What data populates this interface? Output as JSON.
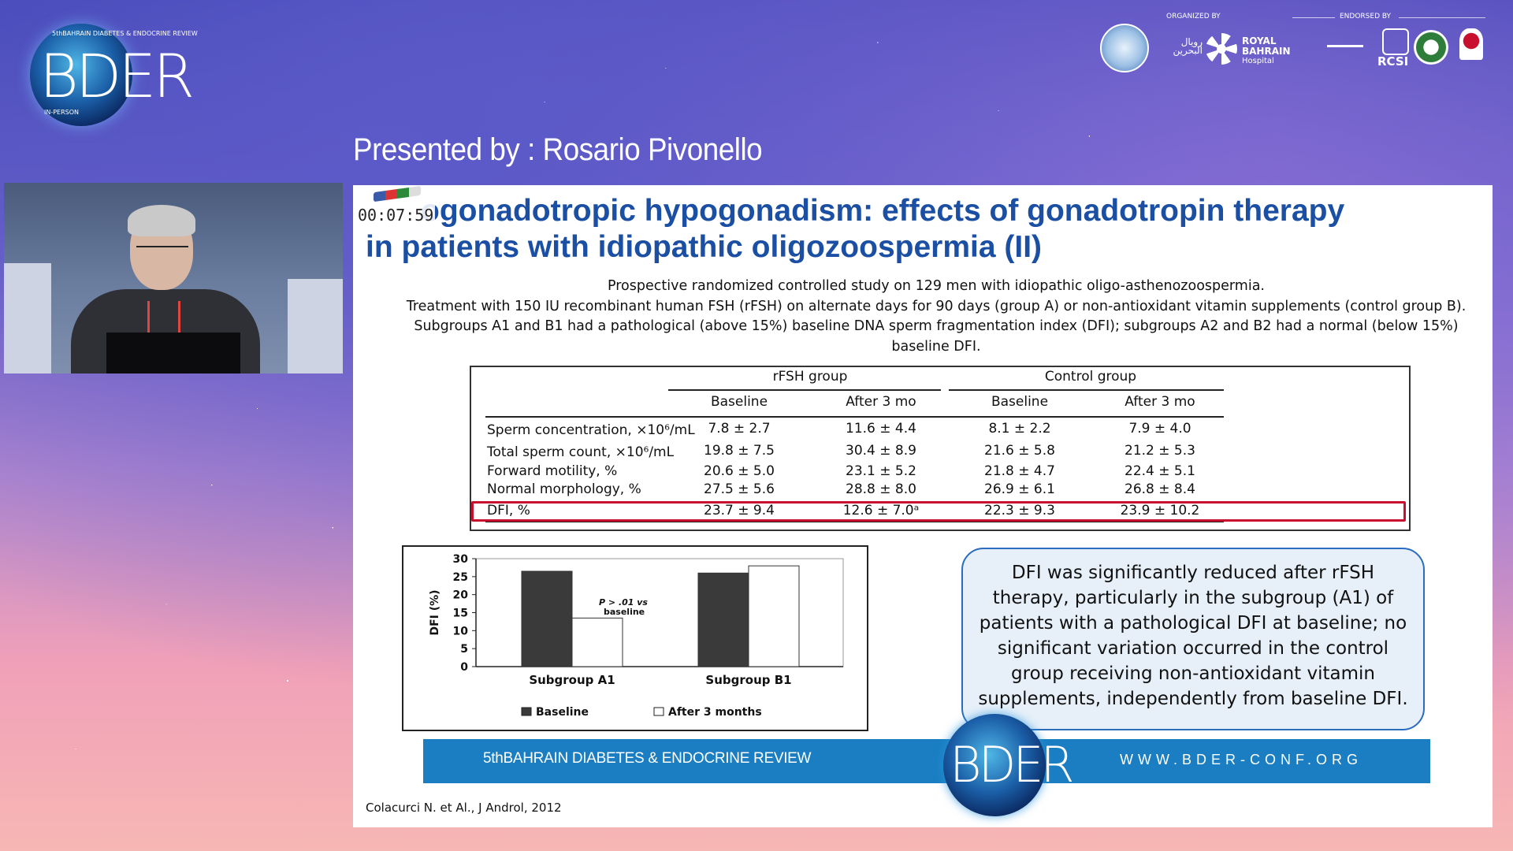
{
  "logo": {
    "top_text": "5thBAHRAIN DIABETES & ENDOCRINE REVIEW",
    "main_text": "BDER",
    "bottom_text": "IN-PERSON"
  },
  "sponsors": {
    "organized_by": "ORGANIZED BY",
    "endorsed_by": "ENDORSED BY",
    "royal_bahrain_line1": "ROYAL",
    "royal_bahrain_line2": "BAHRAIN",
    "royal_bahrain_line3": "Hospital",
    "rcsi": "RCSI",
    "arabic": "رويال البحرين"
  },
  "presenter": "Presented by : Rosario Pivonello",
  "timer": "00:07:59",
  "slide": {
    "title_line1": "ogonadotropic hypogonadism: effects of gonadotropin therapy",
    "title_line2": "in patients with idiopathic oligozoospermia (II)",
    "study_lines": [
      "Prospective randomized controlled study on 129 men with idiopathic oligo-asthenozoospermia.",
      "Treatment with 150 IU recombinant human FSH (rFSH) on alternate days for 90 days (group A) or non-antioxidant vitamin supplements (control group B).",
      "Subgroups A1 and B1 had a pathological (above 15%) baseline DNA sperm fragmentation index (DFI); subgroups A2 and B2 had a normal (below 15%)",
      "baseline DFI."
    ],
    "table": {
      "group1": "rFSH group",
      "group2": "Control group",
      "columns": [
        "Baseline",
        "After 3 mo",
        "Baseline",
        "After 3 mo"
      ],
      "rows": [
        {
          "label": "Sperm concentration, ×10⁶/mL",
          "values": [
            "7.8 ± 2.7",
            "11.6 ± 4.4",
            "8.1 ± 2.2",
            "7.9 ± 4.0"
          ]
        },
        {
          "label": "Total sperm count, ×10⁶/mL",
          "values": [
            "19.8 ± 7.5",
            "30.4 ± 8.9",
            "21.6 ± 5.8",
            "21.2 ± 5.3"
          ]
        },
        {
          "label": "Forward motility, %",
          "values": [
            "20.6 ± 5.0",
            "23.1 ± 5.2",
            "21.8 ± 4.7",
            "22.4 ± 5.1"
          ]
        },
        {
          "label": "Normal morphology, %",
          "values": [
            "27.5 ± 5.6",
            "28.8 ± 8.0",
            "26.9 ± 6.1",
            "26.8 ± 8.4"
          ]
        },
        {
          "label": "DFI, %",
          "values": [
            "23.7 ± 9.4",
            "12.6 ± 7.0ᵃ",
            "22.3 ± 9.3",
            "23.9 ± 10.2"
          ]
        }
      ]
    },
    "callout": "DFI was significantly reduced after rFSH therapy, particularly in the subgroup (A1) of patients with a pathological DFI at baseline; no significant variation occurred in the control group receiving non-antioxidant vitamin supplements, independently from baseline DFI.",
    "banner_left": "5thBAHRAIN DIABETES & ENDOCRINE REVIEW",
    "banner_logo": "BDER",
    "banner_right": "WWW.BDER-CONF.ORG",
    "citation": "Colacurci N. et Al., J Androl, 2012"
  },
  "chart_data": {
    "type": "bar",
    "categories": [
      "Subgroup A1",
      "Subgroup B1"
    ],
    "series": [
      {
        "name": "Baseline",
        "values": [
          26.5,
          26
        ],
        "color": "#3a3a3a"
      },
      {
        "name": "After 3 months",
        "values": [
          13.5,
          28
        ],
        "color": "#ffffff"
      }
    ],
    "ylabel": "DFI (%)",
    "yticks": [
      0,
      5,
      10,
      15,
      20,
      25,
      30
    ],
    "ylim": [
      0,
      30
    ],
    "annotation": "P > .01 vs baseline",
    "legend_position": "bottom"
  }
}
